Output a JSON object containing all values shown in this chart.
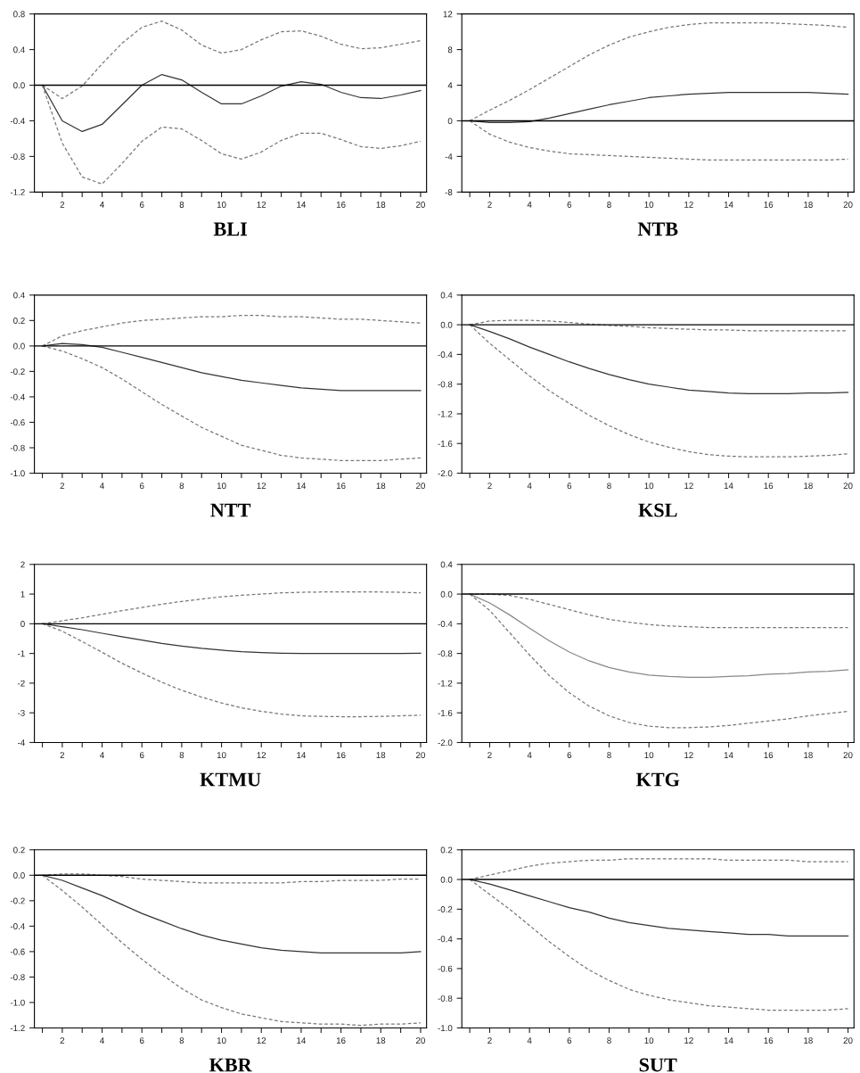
{
  "chart_data": [
    {
      "type": "line",
      "xlabel": "BLI",
      "x": [
        1,
        2,
        3,
        4,
        5,
        6,
        7,
        8,
        9,
        10,
        11,
        12,
        13,
        14,
        15,
        16,
        17,
        18,
        19,
        20
      ],
      "xlim": [
        0.6,
        20.3
      ],
      "xticks": [
        {
          "value": 1,
          "label": null
        },
        2,
        {
          "value": 3,
          "label": null
        },
        4,
        {
          "value": 5,
          "label": null
        },
        6,
        {
          "value": 7,
          "label": null
        },
        8,
        {
          "value": 9,
          "label": null
        },
        10,
        {
          "value": 11,
          "label": null
        },
        12,
        {
          "value": 13,
          "label": null
        },
        14,
        {
          "value": 15,
          "label": null
        },
        16,
        {
          "value": 17,
          "label": null
        },
        18,
        {
          "value": 19,
          "label": null
        },
        20
      ],
      "ylim": [
        -1.2,
        0.8
      ],
      "yticks": [
        -1.2,
        -0.8,
        -0.4,
        {
          "value": 0,
          "label": "0.0"
        },
        0.4,
        0.8
      ],
      "ref_lines": [
        {
          "axis": "y",
          "value": 0,
          "color": "#000000",
          "line_style": "solid"
        }
      ],
      "series": [
        {
          "color": "#777777",
          "line_style": "dashed",
          "values": [
            0,
            -0.15,
            -0.01,
            0.24,
            0.47,
            0.65,
            0.72,
            0.62,
            0.45,
            0.36,
            0.4,
            0.51,
            0.6,
            0.61,
            0.55,
            0.46,
            0.41,
            0.42,
            0.46,
            0.5
          ]
        },
        {
          "color": "#333333",
          "line_style": "solid",
          "values": [
            0,
            -0.4,
            -0.52,
            -0.44,
            -0.22,
            0.0,
            0.12,
            0.06,
            -0.08,
            -0.21,
            -0.21,
            -0.12,
            -0.01,
            0.04,
            0.01,
            -0.08,
            -0.14,
            -0.15,
            -0.11,
            -0.06
          ]
        },
        {
          "color": "#777777",
          "line_style": "dashed",
          "values": [
            0,
            -0.65,
            -1.03,
            -1.11,
            -0.88,
            -0.63,
            -0.47,
            -0.49,
            -0.62,
            -0.77,
            -0.83,
            -0.75,
            -0.62,
            -0.54,
            -0.54,
            -0.61,
            -0.69,
            -0.71,
            -0.68,
            -0.63
          ]
        }
      ]
    },
    {
      "type": "line",
      "xlabel": "NTB",
      "x": [
        1,
        2,
        3,
        4,
        5,
        6,
        7,
        8,
        9,
        10,
        11,
        12,
        13,
        14,
        15,
        16,
        17,
        18,
        19,
        20
      ],
      "xlim": [
        0.6,
        20.3
      ],
      "xticks": [
        {
          "value": 1,
          "label": null
        },
        2,
        {
          "value": 3,
          "label": null
        },
        4,
        {
          "value": 5,
          "label": null
        },
        6,
        {
          "value": 7,
          "label": null
        },
        8,
        {
          "value": 9,
          "label": null
        },
        10,
        {
          "value": 11,
          "label": null
        },
        12,
        {
          "value": 13,
          "label": null
        },
        14,
        {
          "value": 15,
          "label": null
        },
        16,
        {
          "value": 17,
          "label": null
        },
        18,
        {
          "value": 19,
          "label": null
        },
        20
      ],
      "ylim": [
        -8,
        12
      ],
      "yticks": [
        -8,
        -4,
        0,
        4,
        8,
        12
      ],
      "ref_lines": [
        {
          "axis": "y",
          "value": 0,
          "color": "#000000",
          "line_style": "solid"
        }
      ],
      "series": [
        {
          "color": "#777777",
          "line_style": "dashed",
          "values": [
            0,
            1.2,
            2.3,
            3.5,
            4.8,
            6.1,
            7.4,
            8.5,
            9.4,
            10.0,
            10.5,
            10.8,
            11.0,
            11.0,
            11.0,
            11.0,
            10.9,
            10.8,
            10.7,
            10.5
          ]
        },
        {
          "color": "#333333",
          "line_style": "solid",
          "values": [
            0,
            -0.2,
            -0.2,
            -0.1,
            0.3,
            0.8,
            1.3,
            1.8,
            2.2,
            2.6,
            2.8,
            3.0,
            3.1,
            3.2,
            3.2,
            3.2,
            3.2,
            3.2,
            3.1,
            3.0
          ]
        },
        {
          "color": "#777777",
          "line_style": "dashed",
          "values": [
            0,
            -1.5,
            -2.4,
            -3.0,
            -3.4,
            -3.7,
            -3.8,
            -3.9,
            -4.0,
            -4.1,
            -4.2,
            -4.3,
            -4.4,
            -4.4,
            -4.4,
            -4.4,
            -4.4,
            -4.4,
            -4.4,
            -4.3
          ]
        }
      ]
    },
    {
      "type": "line",
      "xlabel": "NTT",
      "x": [
        1,
        2,
        3,
        4,
        5,
        6,
        7,
        8,
        9,
        10,
        11,
        12,
        13,
        14,
        15,
        16,
        17,
        18,
        19,
        20
      ],
      "xlim": [
        0.6,
        20.3
      ],
      "xticks": [
        {
          "value": 1,
          "label": null
        },
        2,
        {
          "value": 3,
          "label": null
        },
        4,
        {
          "value": 5,
          "label": null
        },
        6,
        {
          "value": 7,
          "label": null
        },
        8,
        {
          "value": 9,
          "label": null
        },
        10,
        {
          "value": 11,
          "label": null
        },
        12,
        {
          "value": 13,
          "label": null
        },
        14,
        {
          "value": 15,
          "label": null
        },
        16,
        {
          "value": 17,
          "label": null
        },
        18,
        {
          "value": 19,
          "label": null
        },
        20
      ],
      "ylim": [
        -1.0,
        0.4
      ],
      "yticks": [
        {
          "value": -1,
          "label": "-1.0"
        },
        -0.8,
        -0.6,
        -0.4,
        -0.2,
        {
          "value": 0,
          "label": "0.0"
        },
        0.2,
        0.4
      ],
      "ref_lines": [
        {
          "axis": "y",
          "value": 0,
          "color": "#000000",
          "line_style": "solid"
        }
      ],
      "series": [
        {
          "color": "#777777",
          "line_style": "dashed",
          "values": [
            0,
            0.08,
            0.12,
            0.15,
            0.18,
            0.2,
            0.21,
            0.22,
            0.23,
            0.23,
            0.24,
            0.24,
            0.23,
            0.23,
            0.22,
            0.21,
            0.21,
            0.2,
            0.19,
            0.18
          ]
        },
        {
          "color": "#333333",
          "line_style": "solid",
          "values": [
            0,
            0.02,
            0.01,
            -0.01,
            -0.05,
            -0.09,
            -0.13,
            -0.17,
            -0.21,
            -0.24,
            -0.27,
            -0.29,
            -0.31,
            -0.33,
            -0.34,
            -0.35,
            -0.35,
            -0.35,
            -0.35,
            -0.35
          ]
        },
        {
          "color": "#777777",
          "line_style": "dashed",
          "values": [
            0,
            -0.04,
            -0.1,
            -0.17,
            -0.26,
            -0.36,
            -0.46,
            -0.55,
            -0.64,
            -0.71,
            -0.78,
            -0.82,
            -0.86,
            -0.88,
            -0.89,
            -0.9,
            -0.9,
            -0.9,
            -0.89,
            -0.88
          ]
        }
      ]
    },
    {
      "type": "line",
      "xlabel": "KSL",
      "x": [
        1,
        2,
        3,
        4,
        5,
        6,
        7,
        8,
        9,
        10,
        11,
        12,
        13,
        14,
        15,
        16,
        17,
        18,
        19,
        20
      ],
      "xlim": [
        0.6,
        20.3
      ],
      "xticks": [
        {
          "value": 1,
          "label": null
        },
        2,
        {
          "value": 3,
          "label": null
        },
        4,
        {
          "value": 5,
          "label": null
        },
        6,
        {
          "value": 7,
          "label": null
        },
        8,
        {
          "value": 9,
          "label": null
        },
        10,
        {
          "value": 11,
          "label": null
        },
        12,
        {
          "value": 13,
          "label": null
        },
        14,
        {
          "value": 15,
          "label": null
        },
        16,
        {
          "value": 17,
          "label": null
        },
        18,
        {
          "value": 19,
          "label": null
        },
        20
      ],
      "ylim": [
        -2.0,
        0.4
      ],
      "yticks": [
        {
          "value": -2,
          "label": "-2.0"
        },
        -1.6,
        -1.2,
        -0.8,
        -0.4,
        {
          "value": 0,
          "label": "0.0"
        },
        0.4
      ],
      "ref_lines": [
        {
          "axis": "y",
          "value": 0,
          "color": "#000000",
          "line_style": "solid"
        }
      ],
      "series": [
        {
          "color": "#777777",
          "line_style": "dashed",
          "values": [
            0,
            0.05,
            0.06,
            0.06,
            0.05,
            0.03,
            0.01,
            -0.01,
            -0.02,
            -0.04,
            -0.05,
            -0.06,
            -0.07,
            -0.07,
            -0.08,
            -0.08,
            -0.08,
            -0.08,
            -0.08,
            -0.08
          ]
        },
        {
          "color": "#333333",
          "line_style": "solid",
          "values": [
            0,
            -0.09,
            -0.19,
            -0.3,
            -0.4,
            -0.5,
            -0.59,
            -0.67,
            -0.74,
            -0.8,
            -0.84,
            -0.88,
            -0.9,
            -0.92,
            -0.93,
            -0.93,
            -0.93,
            -0.92,
            -0.92,
            -0.91
          ]
        },
        {
          "color": "#777777",
          "line_style": "dashed",
          "values": [
            0,
            -0.25,
            -0.47,
            -0.69,
            -0.89,
            -1.06,
            -1.22,
            -1.36,
            -1.48,
            -1.58,
            -1.65,
            -1.71,
            -1.75,
            -1.77,
            -1.78,
            -1.78,
            -1.78,
            -1.77,
            -1.76,
            -1.74
          ]
        }
      ]
    },
    {
      "type": "line",
      "xlabel": "KTMU",
      "x": [
        1,
        2,
        3,
        4,
        5,
        6,
        7,
        8,
        9,
        10,
        11,
        12,
        13,
        14,
        15,
        16,
        17,
        18,
        19,
        20
      ],
      "xlim": [
        0.6,
        20.3
      ],
      "xticks": [
        {
          "value": 1,
          "label": null
        },
        2,
        {
          "value": 3,
          "label": null
        },
        4,
        {
          "value": 5,
          "label": null
        },
        6,
        {
          "value": 7,
          "label": null
        },
        8,
        {
          "value": 9,
          "label": null
        },
        10,
        {
          "value": 11,
          "label": null
        },
        12,
        {
          "value": 13,
          "label": null
        },
        14,
        {
          "value": 15,
          "label": null
        },
        16,
        {
          "value": 17,
          "label": null
        },
        18,
        {
          "value": 19,
          "label": null
        },
        20
      ],
      "ylim": [
        -4,
        2
      ],
      "yticks": [
        -4,
        -3,
        -2,
        -1,
        0,
        1,
        2
      ],
      "ref_lines": [
        {
          "axis": "y",
          "value": 0,
          "color": "#000000",
          "line_style": "solid"
        }
      ],
      "series": [
        {
          "color": "#777777",
          "line_style": "dashed",
          "values": [
            0,
            0.1,
            0.2,
            0.32,
            0.44,
            0.55,
            0.66,
            0.75,
            0.83,
            0.91,
            0.96,
            1.0,
            1.04,
            1.06,
            1.07,
            1.07,
            1.07,
            1.07,
            1.06,
            1.04
          ]
        },
        {
          "color": "#333333",
          "line_style": "solid",
          "values": [
            0,
            -0.1,
            -0.2,
            -0.32,
            -0.44,
            -0.55,
            -0.66,
            -0.75,
            -0.83,
            -0.89,
            -0.94,
            -0.97,
            -0.99,
            -1.0,
            -1.0,
            -1.0,
            -1.0,
            -1.0,
            -1.0,
            -0.99
          ]
        },
        {
          "color": "#777777",
          "line_style": "dashed",
          "values": [
            0,
            -0.25,
            -0.6,
            -0.96,
            -1.33,
            -1.66,
            -1.97,
            -2.24,
            -2.47,
            -2.67,
            -2.83,
            -2.95,
            -3.04,
            -3.1,
            -3.12,
            -3.13,
            -3.13,
            -3.12,
            -3.1,
            -3.08
          ]
        }
      ]
    },
    {
      "type": "line",
      "xlabel": "KTG",
      "x": [
        1,
        2,
        3,
        4,
        5,
        6,
        7,
        8,
        9,
        10,
        11,
        12,
        13,
        14,
        15,
        16,
        17,
        18,
        19,
        20
      ],
      "xlim": [
        0.6,
        20.3
      ],
      "xticks": [
        {
          "value": 1,
          "label": null
        },
        2,
        {
          "value": 3,
          "label": null
        },
        4,
        {
          "value": 5,
          "label": null
        },
        6,
        {
          "value": 7,
          "label": null
        },
        8,
        {
          "value": 9,
          "label": null
        },
        10,
        {
          "value": 11,
          "label": null
        },
        12,
        {
          "value": 13,
          "label": null
        },
        14,
        {
          "value": 15,
          "label": null
        },
        16,
        {
          "value": 17,
          "label": null
        },
        18,
        {
          "value": 19,
          "label": null
        },
        20
      ],
      "ylim": [
        -2.0,
        0.4
      ],
      "yticks": [
        {
          "value": -2,
          "label": "-2.0"
        },
        -1.6,
        -1.2,
        -0.8,
        -0.4,
        {
          "value": 0,
          "label": "0.0"
        },
        0.4
      ],
      "ref_lines": [
        {
          "axis": "y",
          "value": 0,
          "color": "#000000",
          "line_style": "solid"
        }
      ],
      "series": [
        {
          "color": "#777777",
          "line_style": "dashed",
          "values": [
            0,
            0.0,
            -0.02,
            -0.07,
            -0.14,
            -0.21,
            -0.28,
            -0.34,
            -0.38,
            -0.41,
            -0.43,
            -0.44,
            -0.45,
            -0.45,
            -0.45,
            -0.45,
            -0.45,
            -0.45,
            -0.45,
            -0.45
          ]
        },
        {
          "color": "#888888",
          "line_style": "solid",
          "values": [
            0,
            -0.12,
            -0.28,
            -0.46,
            -0.63,
            -0.78,
            -0.9,
            -0.99,
            -1.05,
            -1.09,
            -1.11,
            -1.12,
            -1.12,
            -1.11,
            -1.1,
            -1.08,
            -1.07,
            -1.05,
            -1.04,
            -1.02
          ]
        },
        {
          "color": "#777777",
          "line_style": "dashed",
          "values": [
            0,
            -0.22,
            -0.52,
            -0.82,
            -1.1,
            -1.33,
            -1.51,
            -1.64,
            -1.73,
            -1.78,
            -1.8,
            -1.8,
            -1.79,
            -1.77,
            -1.74,
            -1.71,
            -1.68,
            -1.64,
            -1.61,
            -1.58
          ]
        }
      ]
    },
    {
      "type": "line",
      "xlabel": "KBR",
      "x": [
        1,
        2,
        3,
        4,
        5,
        6,
        7,
        8,
        9,
        10,
        11,
        12,
        13,
        14,
        15,
        16,
        17,
        18,
        19,
        20
      ],
      "xlim": [
        0.6,
        20.3
      ],
      "xticks": [
        {
          "value": 1,
          "label": null
        },
        2,
        {
          "value": 3,
          "label": null
        },
        4,
        {
          "value": 5,
          "label": null
        },
        6,
        {
          "value": 7,
          "label": null
        },
        8,
        {
          "value": 9,
          "label": null
        },
        10,
        {
          "value": 11,
          "label": null
        },
        12,
        {
          "value": 13,
          "label": null
        },
        14,
        {
          "value": 15,
          "label": null
        },
        16,
        {
          "value": 17,
          "label": null
        },
        18,
        {
          "value": 19,
          "label": null
        },
        20
      ],
      "ylim": [
        -1.2,
        0.2
      ],
      "yticks": [
        -1.2,
        {
          "value": -1,
          "label": "-1.0"
        },
        -0.8,
        -0.6,
        -0.4,
        -0.2,
        {
          "value": 0,
          "label": "0.0"
        },
        0.2
      ],
      "ref_lines": [
        {
          "axis": "y",
          "value": 0,
          "color": "#000000",
          "line_style": "solid"
        }
      ],
      "series": [
        {
          "color": "#777777",
          "line_style": "dashed",
          "values": [
            0,
            0.01,
            0.01,
            0.0,
            -0.01,
            -0.03,
            -0.04,
            -0.05,
            -0.06,
            -0.06,
            -0.06,
            -0.06,
            -0.06,
            -0.05,
            -0.05,
            -0.04,
            -0.04,
            -0.04,
            -0.03,
            -0.03
          ]
        },
        {
          "color": "#333333",
          "line_style": "solid",
          "values": [
            0,
            -0.04,
            -0.1,
            -0.16,
            -0.23,
            -0.3,
            -0.36,
            -0.42,
            -0.47,
            -0.51,
            -0.54,
            -0.57,
            -0.59,
            -0.6,
            -0.61,
            -0.61,
            -0.61,
            -0.61,
            -0.61,
            -0.6
          ]
        },
        {
          "color": "#777777",
          "line_style": "dashed",
          "values": [
            0,
            -0.12,
            -0.25,
            -0.39,
            -0.53,
            -0.66,
            -0.78,
            -0.89,
            -0.98,
            -1.04,
            -1.09,
            -1.12,
            -1.15,
            -1.16,
            -1.17,
            -1.17,
            -1.18,
            -1.17,
            -1.17,
            -1.16
          ]
        }
      ]
    },
    {
      "type": "line",
      "xlabel": "SUT",
      "x": [
        1,
        2,
        3,
        4,
        5,
        6,
        7,
        8,
        9,
        10,
        11,
        12,
        13,
        14,
        15,
        16,
        17,
        18,
        19,
        20
      ],
      "xlim": [
        0.6,
        20.3
      ],
      "xticks": [
        {
          "value": 1,
          "label": null
        },
        2,
        {
          "value": 3,
          "label": null
        },
        4,
        {
          "value": 5,
          "label": null
        },
        6,
        {
          "value": 7,
          "label": null
        },
        8,
        {
          "value": 9,
          "label": null
        },
        10,
        {
          "value": 11,
          "label": null
        },
        12,
        {
          "value": 13,
          "label": null
        },
        14,
        {
          "value": 15,
          "label": null
        },
        16,
        {
          "value": 17,
          "label": null
        },
        18,
        {
          "value": 19,
          "label": null
        },
        20
      ],
      "ylim": [
        -1.0,
        0.2
      ],
      "yticks": [
        {
          "value": -1,
          "label": "-1.0"
        },
        -0.8,
        -0.6,
        -0.4,
        -0.2,
        {
          "value": 0,
          "label": "0.0"
        },
        0.2
      ],
      "ref_lines": [
        {
          "axis": "y",
          "value": 0,
          "color": "#000000",
          "line_style": "solid"
        }
      ],
      "series": [
        {
          "color": "#777777",
          "line_style": "dashed",
          "values": [
            0,
            0.03,
            0.06,
            0.09,
            0.11,
            0.12,
            0.13,
            0.13,
            0.14,
            0.14,
            0.14,
            0.14,
            0.14,
            0.13,
            0.13,
            0.13,
            0.13,
            0.12,
            0.12,
            0.12
          ]
        },
        {
          "color": "#333333",
          "line_style": "solid",
          "values": [
            0,
            -0.03,
            -0.07,
            -0.11,
            -0.15,
            -0.19,
            -0.22,
            -0.26,
            -0.29,
            -0.31,
            -0.33,
            -0.34,
            -0.35,
            -0.36,
            -0.37,
            -0.37,
            -0.38,
            -0.38,
            -0.38,
            -0.38
          ]
        },
        {
          "color": "#777777",
          "line_style": "dashed",
          "values": [
            0,
            -0.1,
            -0.2,
            -0.31,
            -0.42,
            -0.52,
            -0.61,
            -0.68,
            -0.74,
            -0.78,
            -0.81,
            -0.83,
            -0.85,
            -0.86,
            -0.87,
            -0.88,
            -0.88,
            -0.88,
            -0.88,
            -0.87
          ]
        }
      ]
    }
  ]
}
